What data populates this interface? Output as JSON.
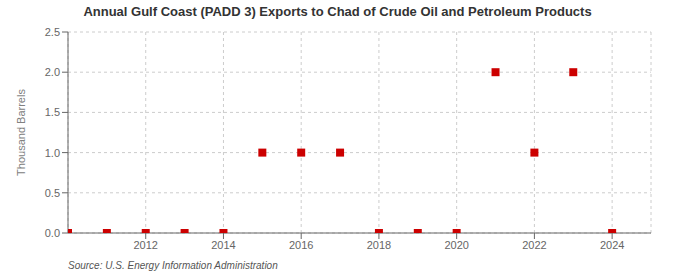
{
  "chart_data": {
    "type": "scatter",
    "title": "Annual Gulf Coast (PADD 3) Exports to Chad of Crude Oil and Petroleum Products",
    "y_label": "Thousand Barrels",
    "annotations": [
      "Source: U.S. Energy Information Administration"
    ],
    "x": [
      2010,
      2011,
      2012,
      2013,
      2014,
      2015,
      2016,
      2017,
      2018,
      2019,
      2020,
      2021,
      2022,
      2023,
      2024
    ],
    "values": [
      0,
      0,
      0,
      0,
      0,
      1,
      1,
      1,
      0,
      0,
      0,
      2,
      1,
      2,
      0
    ],
    "color": "#cc0000",
    "marker": "square",
    "xlim": [
      2010.0,
      2025.0
    ],
    "ylim": [
      0.0,
      2.5
    ],
    "xticks": [
      2012,
      2014,
      2016,
      2018,
      2020,
      2022,
      2024
    ],
    "yticks": [
      {
        "value": 0.0,
        "label": "0.0"
      },
      0.5,
      {
        "value": 1.0,
        "label": "1.0"
      },
      1.5,
      {
        "value": 2.0,
        "label": "2.0"
      },
      2.5
    ],
    "grid": true
  }
}
